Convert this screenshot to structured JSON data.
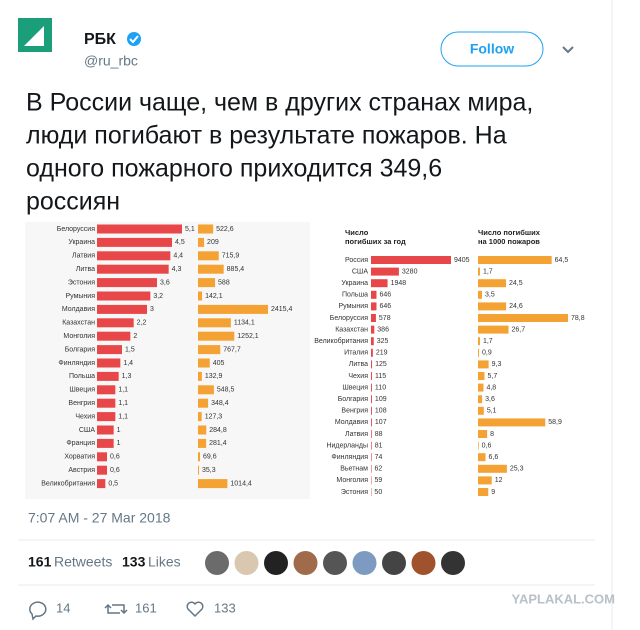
{
  "tweet": {
    "name": "РБК",
    "handle": "@ru_rbc",
    "follow": "Follow",
    "text_lines": [
      "В России чаще, чем в других странах мира,",
      "люди погибают в результате пожаров. На",
      "одного пожарного приходится 349,6",
      "россиян"
    ],
    "time": "7:07 AM - 27 Mar 2018",
    "stats": {
      "retweets": 161,
      "retweets_label": "Retweets",
      "likes": 133,
      "likes_label": "Likes"
    },
    "actions": {
      "replies": 14,
      "retweets": 161,
      "likes": 133
    }
  },
  "image": {
    "left": {
      "categories": [
        "Белоруссия",
        "Украина",
        "Латвия",
        "Литва",
        "Эстония",
        "Румыния",
        "Молдавия",
        "Казахстан",
        "Монголия",
        "Болгария",
        "Финляндия",
        "Польша",
        "Швеция",
        "Венгрия",
        "Чехия",
        "США",
        "Франция",
        "Хорватия",
        "Австрия",
        "Великобритания"
      ],
      "series": [
        {
          "color": "#e8474a",
          "values": [
            5.1,
            4.5,
            4.4,
            4.3,
            3.6,
            3.2,
            3,
            2.2,
            2,
            1.5,
            1.4,
            1.3,
            1.1,
            1.1,
            1.1,
            1,
            1,
            0.6,
            0.6,
            0.5
          ],
          "value_labels": [
            "5,1",
            "4,5",
            "4,4",
            "4,3",
            "3,6",
            "3,2",
            "3",
            "2,2",
            "2",
            "1,5",
            "1,4",
            "1,3",
            "1,1",
            "1,1",
            "1,1",
            "1",
            "1",
            "0,6",
            "0,6",
            "0,5"
          ]
        },
        {
          "color": "#f4a233",
          "values": [
            522.6,
            209,
            715.9,
            885.4,
            588,
            142.1,
            2415.4,
            1134.1,
            1252.1,
            767.7,
            405,
            132.9,
            548.5,
            348.4,
            127.3,
            284.8,
            281.4,
            69.6,
            35.3,
            1014.4
          ],
          "value_labels": [
            "522,6",
            "209",
            "715,9",
            "885,4",
            "588",
            "142,1",
            "2415,4",
            "1134,1",
            "1252,1",
            "767,7",
            "405",
            "132,9",
            "548,5",
            "348,4",
            "127,3",
            "284,8",
            "281,4",
            "69,6",
            "35,3",
            "1014,4"
          ]
        }
      ]
    },
    "right": {
      "headers": [
        [
          "Число",
          "погибших за год"
        ],
        [
          "Число погибших",
          "на 1000 пожаров"
        ]
      ],
      "categories": [
        "Россия",
        "США",
        "Украина",
        "Польша",
        "Румыния",
        "Белоруссия",
        "Казахстан",
        "Великобритания",
        "Италия",
        "Литва",
        "Чехия",
        "Швеция",
        "Болгария",
        "Венгрия",
        "Молдавия",
        "Латвия",
        "Нидерланды",
        "Финляндия",
        "Вьетнам",
        "Монголия",
        "Эстония"
      ],
      "series": [
        {
          "color": "#e8474a",
          "values": [
            9405,
            3280,
            1948,
            646,
            646,
            578,
            386,
            325,
            219,
            125,
            115,
            110,
            109,
            108,
            107,
            88,
            81,
            74,
            62,
            59,
            50
          ],
          "value_labels": [
            "9405",
            "3280",
            "1948",
            "646",
            "646",
            "578",
            "386",
            "325",
            "219",
            "125",
            "115",
            "110",
            "109",
            "108",
            "107",
            "88",
            "81",
            "74",
            "62",
            "59",
            "50"
          ]
        },
        {
          "color": "#f4a233",
          "values": [
            64.5,
            1.7,
            24.5,
            3.5,
            24.6,
            78.8,
            26.7,
            1.7,
            0.9,
            9.3,
            5.7,
            4.8,
            3.6,
            5.1,
            58.9,
            8,
            0.6,
            6.6,
            25.3,
            12,
            9
          ],
          "value_labels": [
            "64,5",
            "1,7",
            "24,5",
            "3,5",
            "24,6",
            "78,8",
            "26,7",
            "1,7",
            "0,9",
            "9,3",
            "5,7",
            "4,8",
            "3,6",
            "5,1",
            "58,9",
            "8",
            "0,6",
            "6,6",
            "25,3",
            "12",
            "9"
          ]
        }
      ]
    }
  },
  "watermark": "YAPLAKAL.COM"
}
